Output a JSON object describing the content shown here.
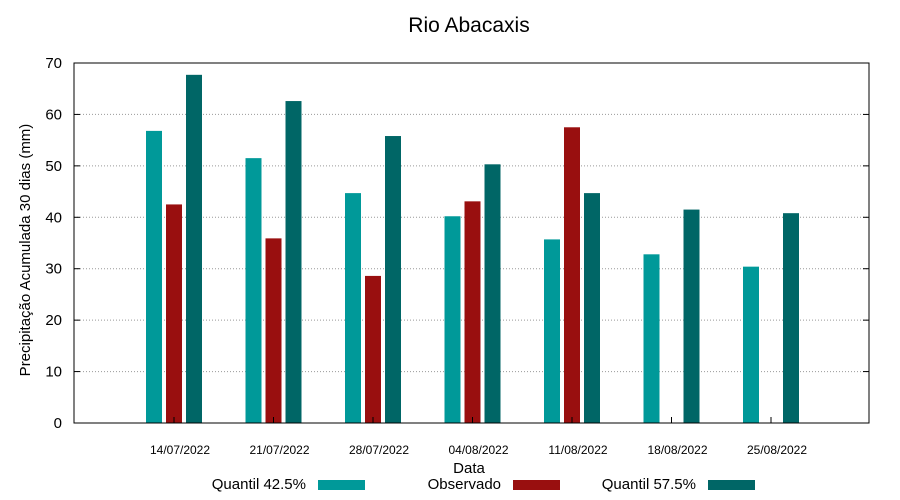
{
  "chart_data": {
    "type": "bar",
    "title": "Rio Abacaxis",
    "xlabel": "Data",
    "ylabel": "Precipitação Acumulada 30 dias (mm)",
    "ylim": [
      0,
      70
    ],
    "yticks": [
      0,
      10,
      20,
      30,
      40,
      50,
      60,
      70
    ],
    "grid": true,
    "legend_position": "bottom",
    "categories": [
      "14/07/2022",
      "21/07/2022",
      "28/07/2022",
      "04/08/2022",
      "11/08/2022",
      "18/08/2022",
      "25/08/2022"
    ],
    "series": [
      {
        "name": "Quantil 42.5%",
        "color": "#009999",
        "values": [
          56.8,
          51.5,
          44.7,
          40.2,
          35.7,
          32.8,
          30.4
        ]
      },
      {
        "name": "Observado",
        "color": "#990f0f",
        "values": [
          42.5,
          35.9,
          28.6,
          43.1,
          57.5,
          null,
          null
        ]
      },
      {
        "name": "Quantil 57.5%",
        "color": "#006666",
        "values": [
          67.7,
          62.6,
          55.8,
          50.3,
          44.7,
          41.5,
          40.8
        ]
      }
    ]
  }
}
